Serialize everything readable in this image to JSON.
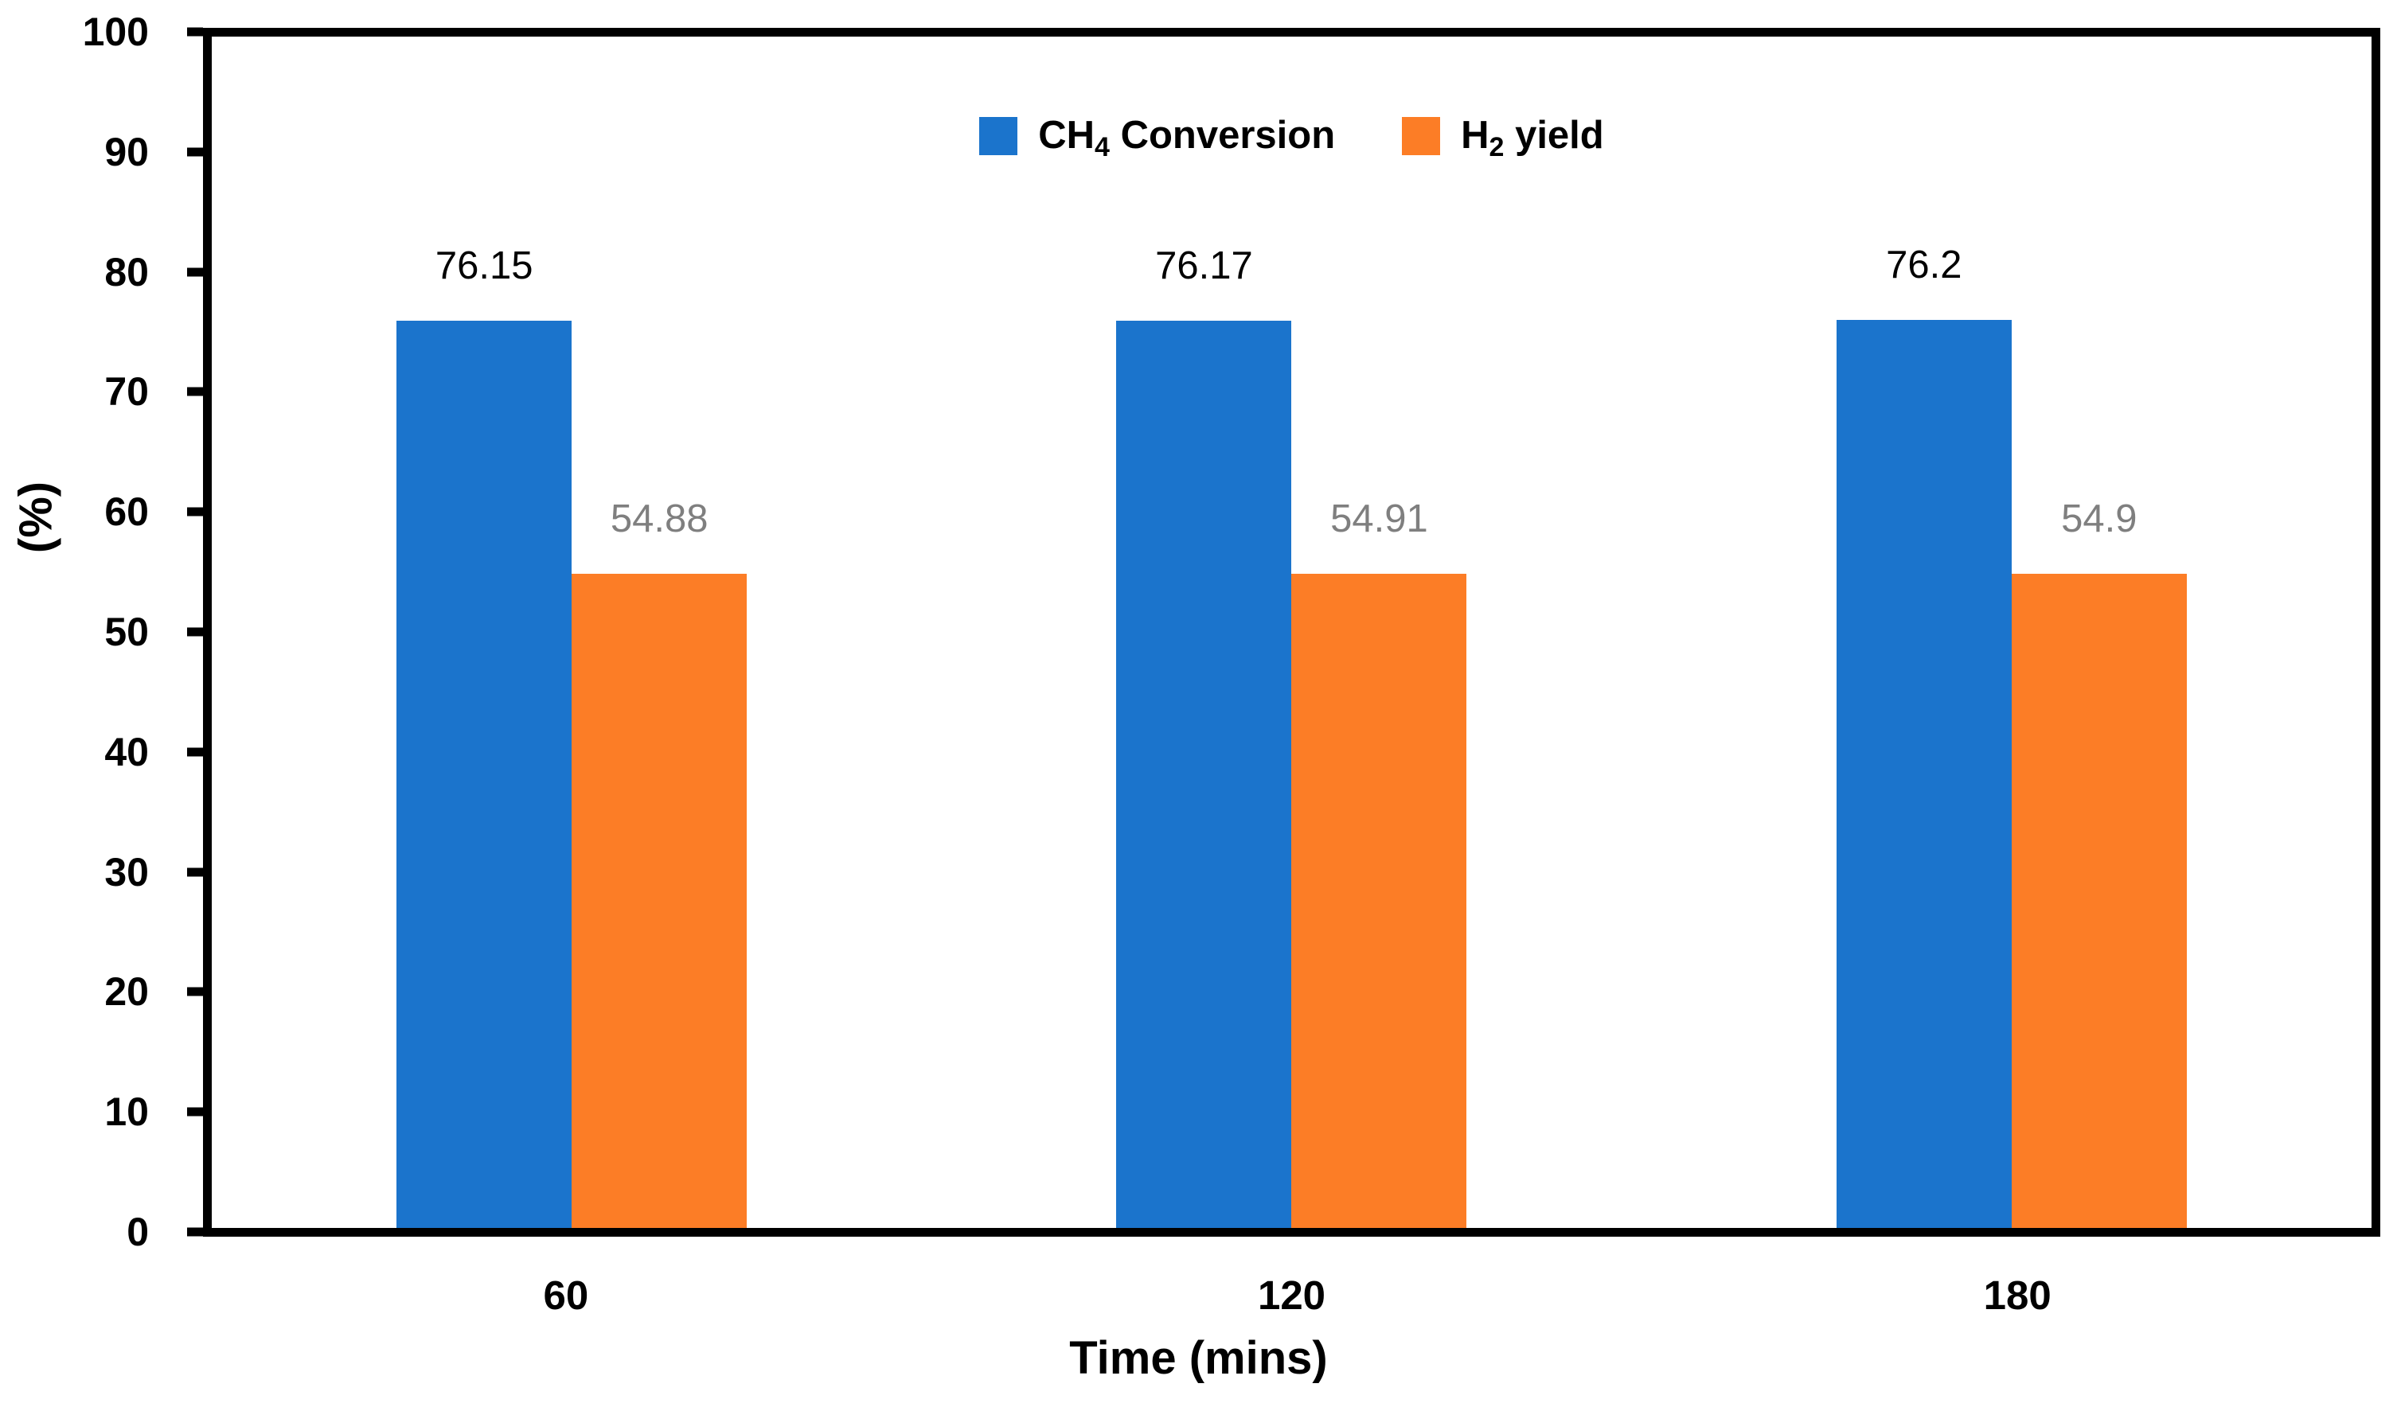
{
  "chart_data": {
    "type": "bar",
    "title": "",
    "categories": [
      "60",
      "120",
      "180"
    ],
    "series": [
      {
        "name": "CH4 Conversion",
        "legend_label": {
          "base": "CH",
          "sub": "4",
          "rest": " Conversion"
        },
        "values": [
          76.15,
          76.17,
          76.2
        ],
        "data_labels": [
          "76.15",
          "76.17",
          "76.2"
        ],
        "color": "#1B74CC",
        "data_label_color": "#000000"
      },
      {
        "name": "H2 yield",
        "legend_label": {
          "base": "H",
          "sub": "2",
          "rest": " yield"
        },
        "values": [
          54.88,
          54.91,
          54.9
        ],
        "data_labels": [
          "54.88",
          "54.91",
          "54.9"
        ],
        "color": "#FC7D26",
        "data_label_color": "#7F7F7F"
      }
    ],
    "xlabel": "Time (mins)",
    "ylabel": "(%)",
    "ylim": [
      0,
      100
    ],
    "ytick_interval": 10,
    "ytick_labels": [
      "0",
      "10",
      "20",
      "30",
      "40",
      "50",
      "60",
      "70",
      "80",
      "90",
      "100"
    ],
    "grid": false,
    "legend_position": "top-center",
    "axis_color": "#000000",
    "plot_border": true,
    "background": "#FFFFFF"
  }
}
